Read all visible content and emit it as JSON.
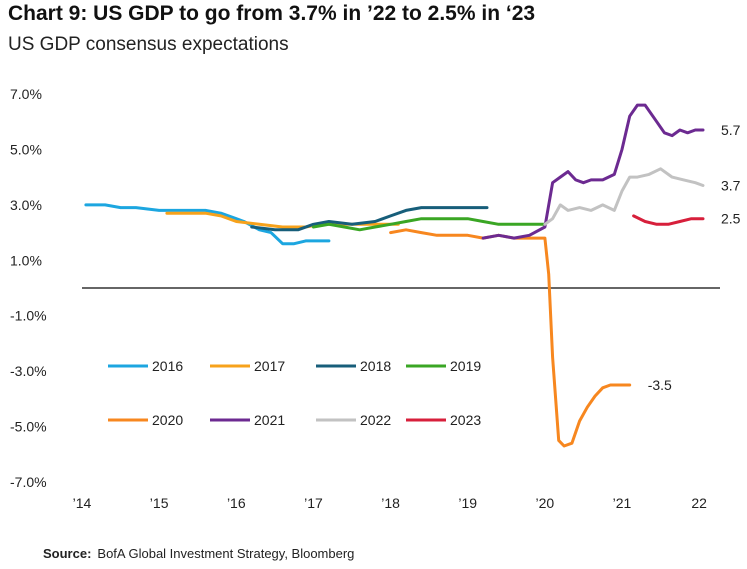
{
  "header": {
    "title": "Chart 9: US GDP to go from 3.7% in ’22 to 2.5% in ‘23",
    "subtitle": "US GDP consensus expectations"
  },
  "footer": {
    "source_label": "Source:",
    "source_text": "BofA Global Investment Strategy, Bloomberg"
  },
  "chart_data": {
    "type": "line",
    "title": "Chart 9: US GDP to go from 3.7% in ’22 to 2.5% in ‘23",
    "subtitle": "US GDP consensus expectations",
    "xlim": [
      2014,
      2022.4
    ],
    "ylim": [
      -7,
      7
    ],
    "y_ticks": [
      7,
      5,
      3,
      1,
      -1,
      -3,
      -5,
      -7
    ],
    "y_tick_labels": [
      "7.0%",
      "5.0%",
      "3.0%",
      "1.0%",
      "-1.0%",
      "-3.0%",
      "-5.0%",
      "-7.0%"
    ],
    "x_ticks": [
      2014,
      2015,
      2016,
      2017,
      2018,
      2019,
      2020,
      2021,
      2022
    ],
    "x_tick_labels": [
      "’14",
      "’15",
      "’16",
      "’17",
      "’18",
      "’19",
      "’20",
      "’21",
      "22"
    ],
    "zero_line": true,
    "legend_position": "bottom-center",
    "series": [
      {
        "name": "2016",
        "color": "#1ca6e0",
        "x": [
          2014.05,
          2014.3,
          2014.5,
          2014.7,
          2015.0,
          2015.3,
          2015.6,
          2015.8,
          2016.0,
          2016.1,
          2016.3,
          2016.45,
          2016.6,
          2016.75,
          2016.9,
          2017.0,
          2017.2
        ],
        "y": [
          3.0,
          3.0,
          2.9,
          2.9,
          2.8,
          2.8,
          2.8,
          2.7,
          2.5,
          2.4,
          2.1,
          2.0,
          1.6,
          1.6,
          1.7,
          1.7,
          1.7
        ]
      },
      {
        "name": "2017",
        "color": "#f7a21b",
        "x": [
          2015.1,
          2015.4,
          2015.6,
          2015.8,
          2016.0,
          2016.3,
          2016.6,
          2016.9,
          2017.1,
          2017.3,
          2017.6,
          2017.9,
          2018.1
        ],
        "y": [
          2.7,
          2.7,
          2.7,
          2.6,
          2.4,
          2.3,
          2.2,
          2.2,
          2.3,
          2.3,
          2.3,
          2.3,
          2.3
        ]
      },
      {
        "name": "2018",
        "color": "#175e7a",
        "x": [
          2016.2,
          2016.5,
          2016.8,
          2017.0,
          2017.2,
          2017.5,
          2017.8,
          2018.0,
          2018.2,
          2018.4,
          2018.7,
          2019.0,
          2019.25
        ],
        "y": [
          2.2,
          2.1,
          2.1,
          2.3,
          2.4,
          2.3,
          2.4,
          2.6,
          2.8,
          2.9,
          2.9,
          2.9,
          2.9
        ]
      },
      {
        "name": "2019",
        "color": "#3aa624",
        "x": [
          2017.0,
          2017.2,
          2017.4,
          2017.6,
          2017.8,
          2018.0,
          2018.2,
          2018.4,
          2018.6,
          2018.8,
          2019.0,
          2019.2,
          2019.4,
          2019.6,
          2019.8,
          2020.0
        ],
        "y": [
          2.2,
          2.3,
          2.2,
          2.1,
          2.2,
          2.3,
          2.4,
          2.5,
          2.5,
          2.5,
          2.5,
          2.4,
          2.3,
          2.3,
          2.3,
          2.3
        ]
      },
      {
        "name": "2020",
        "color": "#f7871f",
        "x": [
          2018.0,
          2018.2,
          2018.4,
          2018.6,
          2018.8,
          2019.0,
          2019.2,
          2019.4,
          2019.6,
          2019.8,
          2020.0,
          2020.05,
          2020.1,
          2020.18,
          2020.25,
          2020.35,
          2020.45,
          2020.55,
          2020.65,
          2020.75,
          2020.85,
          2021.0,
          2021.1
        ],
        "y": [
          2.0,
          2.1,
          2.0,
          1.9,
          1.9,
          1.9,
          1.8,
          1.9,
          1.8,
          1.8,
          1.8,
          0.5,
          -2.5,
          -5.5,
          -5.7,
          -5.6,
          -4.8,
          -4.3,
          -3.9,
          -3.6,
          -3.5,
          -3.5,
          -3.5
        ]
      },
      {
        "name": "2021",
        "color": "#6c2a91",
        "x": [
          2019.2,
          2019.4,
          2019.6,
          2019.8,
          2020.0,
          2020.1,
          2020.2,
          2020.3,
          2020.4,
          2020.5,
          2020.6,
          2020.75,
          2020.9,
          2021.0,
          2021.1,
          2021.2,
          2021.3,
          2021.45,
          2021.55,
          2021.65,
          2021.75,
          2021.85,
          2021.95,
          2022.05
        ],
        "y": [
          1.8,
          1.9,
          1.8,
          1.9,
          2.2,
          3.8,
          4.0,
          4.2,
          3.9,
          3.8,
          3.9,
          3.9,
          4.1,
          5.0,
          6.2,
          6.6,
          6.6,
          6.0,
          5.6,
          5.5,
          5.7,
          5.6,
          5.7,
          5.7
        ]
      },
      {
        "name": "2022",
        "color": "#c2c2c2",
        "x": [
          2020.0,
          2020.1,
          2020.2,
          2020.3,
          2020.45,
          2020.6,
          2020.75,
          2020.9,
          2021.0,
          2021.1,
          2021.2,
          2021.35,
          2021.5,
          2021.65,
          2021.8,
          2021.95,
          2022.05
        ],
        "y": [
          2.3,
          2.5,
          3.0,
          2.8,
          2.9,
          2.8,
          3.0,
          2.8,
          3.5,
          4.0,
          4.0,
          4.1,
          4.3,
          4.0,
          3.9,
          3.8,
          3.7
        ]
      },
      {
        "name": "2023",
        "color": "#d71f3b",
        "x": [
          2021.15,
          2021.3,
          2021.45,
          2021.6,
          2021.75,
          2021.9,
          2022.05
        ],
        "y": [
          2.6,
          2.4,
          2.3,
          2.3,
          2.4,
          2.5,
          2.5
        ]
      }
    ],
    "end_labels": [
      {
        "text": "5.7",
        "x": 2022.05,
        "y": 5.7
      },
      {
        "text": "3.7",
        "x": 2022.05,
        "y": 3.7
      },
      {
        "text": "2.5",
        "x": 2022.05,
        "y": 2.5
      },
      {
        "text": "-3.5",
        "x": 2021.1,
        "y": -3.5
      }
    ]
  }
}
